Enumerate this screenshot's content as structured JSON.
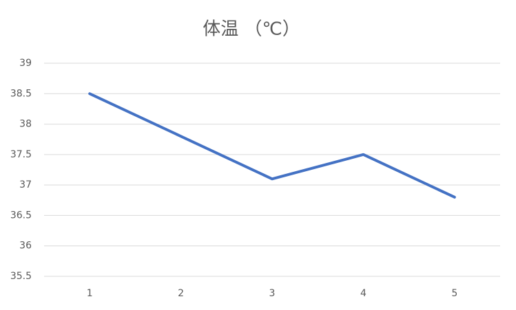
{
  "chart_data": {
    "type": "line",
    "title": "体温 （℃）",
    "categories": [
      "1",
      "2",
      "3",
      "4",
      "5"
    ],
    "values": [
      38.5,
      37.8,
      37.1,
      37.5,
      36.8
    ],
    "color": "#4472c4",
    "ylim": [
      35.5,
      39
    ],
    "yticks": [
      35.5,
      36,
      36.5,
      37,
      37.5,
      38,
      38.5,
      39
    ],
    "grid": true
  }
}
